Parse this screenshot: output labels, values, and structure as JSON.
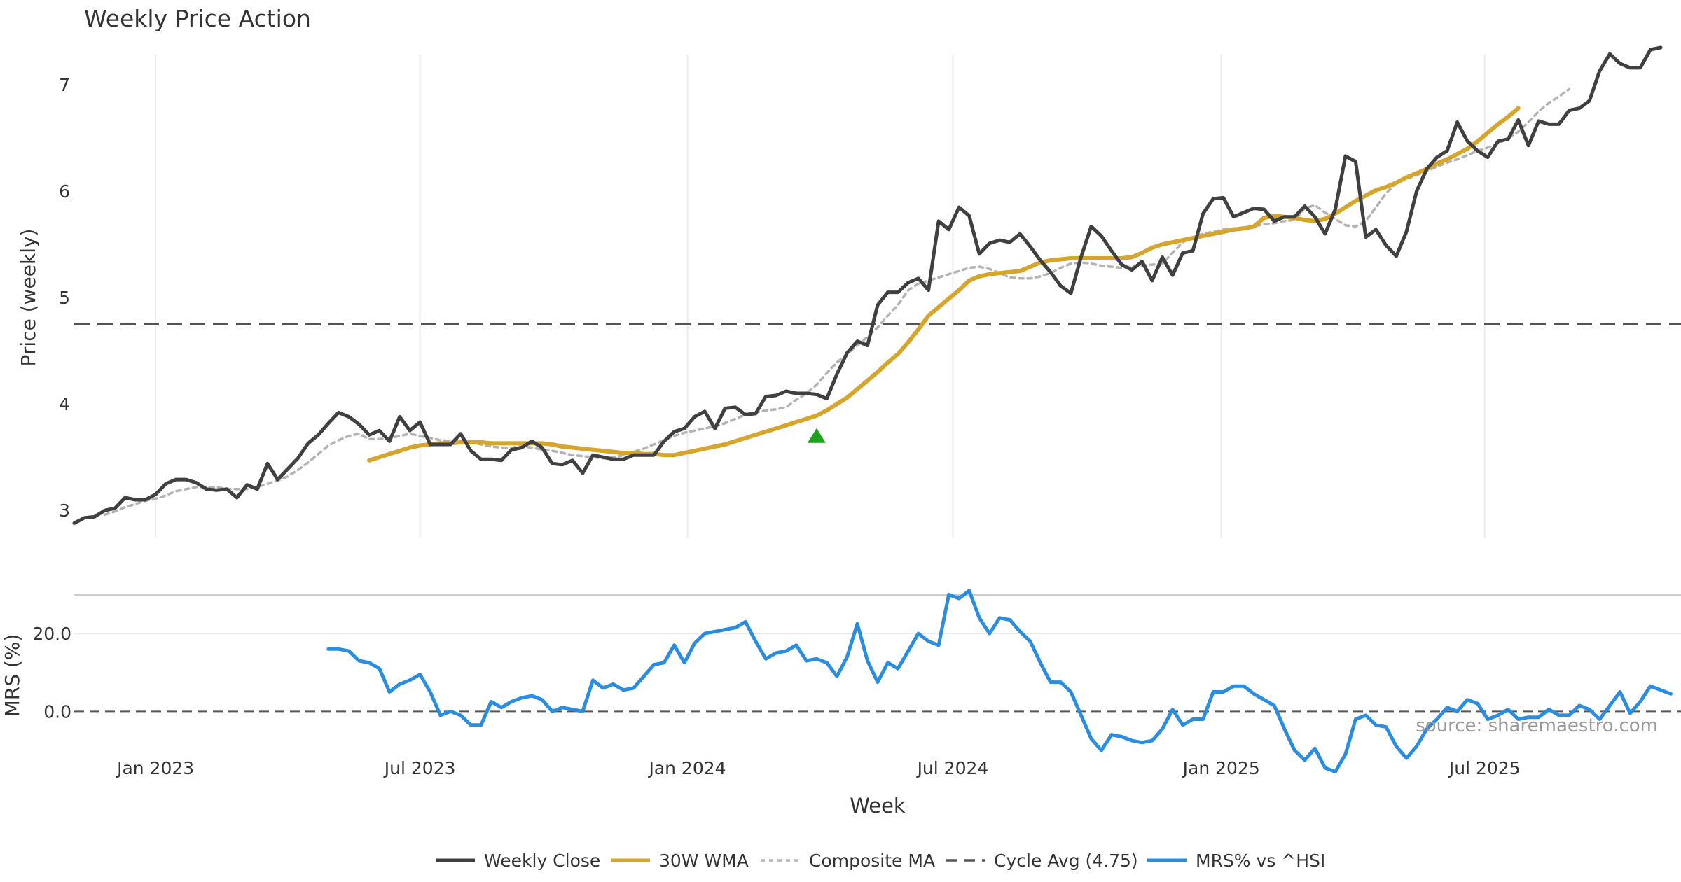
{
  "colors": {
    "close": "#404040",
    "wma": "#d6a52b",
    "composite": "#b3b3b3",
    "cycle": "#555555",
    "mrs": "#2a8de0",
    "signal": "#1fa01f",
    "grid": "#ebebeb",
    "watermark": "#999999"
  },
  "watermark": "source: sharemaestro.com",
  "chart_data": [
    {
      "type": "line",
      "title": "Weekly Price Action",
      "ylabel": "Price (weekly)",
      "ylim": [
        2.6,
        7.6
      ],
      "yticks": [
        3,
        4,
        5,
        6,
        7
      ],
      "cycle_avg": 4.75,
      "signal": {
        "x": 73,
        "y": 3.7
      },
      "series": [
        {
          "name": "Weekly Close",
          "start": 0,
          "values": [
            2.88,
            2.93,
            2.94,
            3.0,
            3.02,
            3.12,
            3.1,
            3.1,
            3.15,
            3.25,
            3.29,
            3.29,
            3.26,
            3.2,
            3.19,
            3.2,
            3.12,
            3.24,
            3.2,
            3.44,
            3.29,
            3.39,
            3.49,
            3.63,
            3.71,
            3.82,
            3.92,
            3.88,
            3.81,
            3.71,
            3.75,
            3.65,
            3.88,
            3.75,
            3.83,
            3.62,
            3.62,
            3.62,
            3.72,
            3.56,
            3.48,
            3.48,
            3.47,
            3.57,
            3.59,
            3.65,
            3.59,
            3.44,
            3.43,
            3.47,
            3.35,
            3.52,
            3.5,
            3.48,
            3.48,
            3.52,
            3.52,
            3.52,
            3.65,
            3.74,
            3.77,
            3.88,
            3.93,
            3.77,
            3.96,
            3.97,
            3.9,
            3.91,
            4.07,
            4.08,
            4.12,
            4.1,
            4.1,
            4.09,
            4.05,
            4.28,
            4.48,
            4.59,
            4.55,
            4.93,
            5.05,
            5.05,
            5.14,
            5.18,
            5.07,
            5.72,
            5.64,
            5.85,
            5.77,
            5.41,
            5.51,
            5.54,
            5.52,
            5.6,
            5.48,
            5.35,
            5.24,
            5.11,
            5.04,
            5.38,
            5.67,
            5.58,
            5.44,
            5.31,
            5.26,
            5.34,
            5.16,
            5.38,
            5.21,
            5.42,
            5.44,
            5.79,
            5.93,
            5.94,
            5.76,
            5.8,
            5.84,
            5.83,
            5.72,
            5.76,
            5.76,
            5.86,
            5.76,
            5.6,
            5.83,
            6.33,
            6.28,
            5.57,
            5.64,
            5.49,
            5.39,
            5.62,
            6.0,
            6.21,
            6.32,
            6.38,
            6.65,
            6.47,
            6.38,
            6.32,
            6.47,
            6.49,
            6.67,
            6.43,
            6.66,
            6.63,
            6.63,
            6.76,
            6.78,
            6.85,
            7.13,
            7.29,
            7.2,
            7.16,
            7.16,
            7.33,
            7.35
          ]
        },
        {
          "name": "30W WMA",
          "start": 29,
          "values": [
            3.47,
            3.5,
            3.53,
            3.56,
            3.59,
            3.61,
            3.62,
            3.63,
            3.63,
            3.64,
            3.64,
            3.64,
            3.63,
            3.63,
            3.63,
            3.63,
            3.63,
            3.63,
            3.62,
            3.6,
            3.59,
            3.58,
            3.57,
            3.56,
            3.55,
            3.54,
            3.54,
            3.53,
            3.53,
            3.52,
            3.52,
            3.54,
            3.56,
            3.58,
            3.6,
            3.62,
            3.65,
            3.68,
            3.71,
            3.74,
            3.77,
            3.8,
            3.83,
            3.86,
            3.89,
            3.94,
            4.0,
            4.06,
            4.14,
            4.22,
            4.3,
            4.39,
            4.47,
            4.58,
            4.7,
            4.83,
            4.91,
            4.99,
            5.07,
            5.16,
            5.2,
            5.22,
            5.23,
            5.24,
            5.25,
            5.29,
            5.33,
            5.35,
            5.36,
            5.37,
            5.37,
            5.37,
            5.37,
            5.37,
            5.37,
            5.38,
            5.42,
            5.47,
            5.5,
            5.52,
            5.54,
            5.56,
            5.58,
            5.6,
            5.62,
            5.64,
            5.65,
            5.67,
            5.75,
            5.77,
            5.76,
            5.75,
            5.73,
            5.72,
            5.74,
            5.79,
            5.85,
            5.91,
            5.96,
            6.01,
            6.04,
            6.08,
            6.13,
            6.17,
            6.21,
            6.26,
            6.3,
            6.35,
            6.4,
            6.47,
            6.55,
            6.63,
            6.7,
            6.78
          ]
        },
        {
          "name": "Composite MA",
          "start": 3,
          "values": [
            2.96,
            2.99,
            3.03,
            3.06,
            3.09,
            3.11,
            3.14,
            3.18,
            3.2,
            3.22,
            3.22,
            3.22,
            3.2,
            3.2,
            3.2,
            3.22,
            3.25,
            3.28,
            3.32,
            3.38,
            3.45,
            3.53,
            3.61,
            3.66,
            3.7,
            3.72,
            3.67,
            3.67,
            3.68,
            3.7,
            3.72,
            3.7,
            3.68,
            3.66,
            3.65,
            3.65,
            3.64,
            3.62,
            3.6,
            3.59,
            3.59,
            3.6,
            3.59,
            3.57,
            3.56,
            3.54,
            3.52,
            3.51,
            3.5,
            3.49,
            3.5,
            3.52,
            3.55,
            3.58,
            3.62,
            3.66,
            3.7,
            3.73,
            3.75,
            3.77,
            3.79,
            3.82,
            3.86,
            3.9,
            3.92,
            3.94,
            3.95,
            3.97,
            4.04,
            4.1,
            4.18,
            4.29,
            4.39,
            4.47,
            4.55,
            4.63,
            4.72,
            4.83,
            4.93,
            5.07,
            5.13,
            5.16,
            5.19,
            5.22,
            5.25,
            5.28,
            5.29,
            5.27,
            5.23,
            5.19,
            5.18,
            5.18,
            5.2,
            5.23,
            5.28,
            5.32,
            5.33,
            5.32,
            5.3,
            5.29,
            5.28,
            5.29,
            5.3,
            5.31,
            5.32,
            5.42,
            5.52,
            5.57,
            5.6,
            5.62,
            5.64,
            5.65,
            5.66,
            5.67,
            5.69,
            5.7,
            5.72,
            5.73,
            5.84,
            5.87,
            5.8,
            5.74,
            5.68,
            5.67,
            5.72,
            5.85,
            5.98,
            6.08,
            6.12,
            6.15,
            6.19,
            6.23,
            6.27,
            6.3,
            6.34,
            6.38,
            6.41,
            6.45,
            6.5,
            6.56,
            6.65,
            6.75,
            6.83,
            6.89,
            6.96
          ]
        }
      ]
    },
    {
      "type": "line",
      "ylabel": "MRS (%)",
      "ylim": [
        -14.5,
        33.5
      ],
      "yticks": [
        0.0,
        20.0
      ],
      "ytick_labels": [
        "0.0",
        "20.0"
      ],
      "zero_line": 0,
      "xlabel": "Week",
      "xticks": [
        {
          "x": 8.0,
          "label": "Jan 2023"
        },
        {
          "x": 34.0,
          "label": "Jul 2023"
        },
        {
          "x": 60.3,
          "label": "Jan 2024"
        },
        {
          "x": 86.4,
          "label": "Jul 2024"
        },
        {
          "x": 112.8,
          "label": "Jan 2025"
        },
        {
          "x": 138.7,
          "label": "Jul 2025"
        }
      ],
      "series": [
        {
          "name": "MRS% vs ^HSI",
          "start": 25,
          "values": [
            16.0,
            16.0,
            15.5,
            13.0,
            12.5,
            11.0,
            5.0,
            7.0,
            8.0,
            9.5,
            5.0,
            -1.0,
            0.0,
            -1.0,
            -3.5,
            -3.5,
            2.5,
            1.0,
            2.5,
            3.5,
            4.0,
            3.0,
            0.0,
            1.0,
            0.5,
            0.0,
            8.0,
            6.0,
            7.0,
            5.5,
            6.0,
            9.0,
            12.0,
            12.5,
            17.0,
            12.5,
            17.5,
            20.0,
            20.5,
            21.0,
            21.5,
            23.0,
            18.0,
            13.5,
            15.0,
            15.5,
            17.0,
            13.0,
            13.5,
            12.5,
            9.0,
            14.0,
            22.5,
            13.0,
            7.5,
            12.5,
            11.0,
            15.5,
            20.0,
            18.0,
            17.0,
            30.0,
            29.0,
            31.0,
            24.0,
            20.0,
            24.0,
            23.5,
            20.5,
            18.0,
            12.5,
            7.5,
            7.5,
            5.0,
            -1.0,
            -7.0,
            -10.0,
            -6.0,
            -6.5,
            -7.5,
            -8.0,
            -7.5,
            -4.5,
            0.5,
            -3.5,
            -2.0,
            -2.0,
            5.0,
            5.0,
            6.5,
            6.5,
            4.5,
            3.0,
            1.5,
            -4.5,
            -10.0,
            -12.5,
            -9.5,
            -14.5,
            -15.5,
            -11.0,
            -2.0,
            -1.0,
            -3.5,
            -4.0,
            -9.0,
            -12.0,
            -9.0,
            -4.5,
            -2.0,
            1.0,
            0.0,
            3.0,
            2.0,
            -2.0,
            -1.0,
            0.5,
            -2.0,
            -1.5,
            -1.5,
            0.5,
            -1.0,
            -1.0,
            1.5,
            0.5,
            -2.0,
            1.5,
            5.0,
            -0.5,
            2.5,
            6.5,
            5.5,
            4.5
          ]
        }
      ]
    }
  ],
  "legend": [
    {
      "key": "close",
      "label": "Weekly Close"
    },
    {
      "key": "wma",
      "label": "30W WMA"
    },
    {
      "key": "composite",
      "label": "Composite MA"
    },
    {
      "key": "cycle",
      "label": "Cycle Avg (4.75)"
    },
    {
      "key": "mrs",
      "label": "MRS% vs ^HSI"
    }
  ]
}
